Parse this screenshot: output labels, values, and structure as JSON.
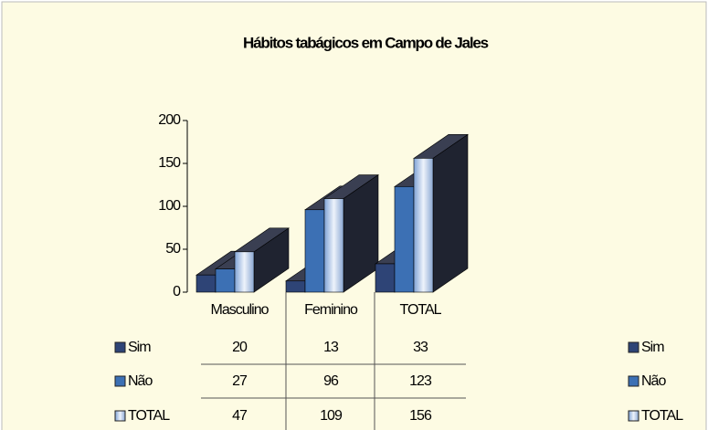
{
  "chart_data": {
    "type": "bar3d",
    "title": "Hábitos tabágicos em Campo de Jales",
    "categories": [
      "Masculino",
      "Feminino",
      "TOTAL"
    ],
    "series": [
      {
        "name": "Sim",
        "color": "#2e4476",
        "values": [
          20,
          13,
          33
        ]
      },
      {
        "name": "Não",
        "color": "#3c70b4",
        "values": [
          27,
          96,
          123
        ]
      },
      {
        "name": "TOTAL",
        "color": "#b8cbe6",
        "values": [
          47,
          109,
          156
        ]
      }
    ],
    "ylim": [
      0,
      200
    ],
    "yticks": [
      0,
      50,
      100,
      150,
      200
    ],
    "legend": "right",
    "data_table": true
  }
}
